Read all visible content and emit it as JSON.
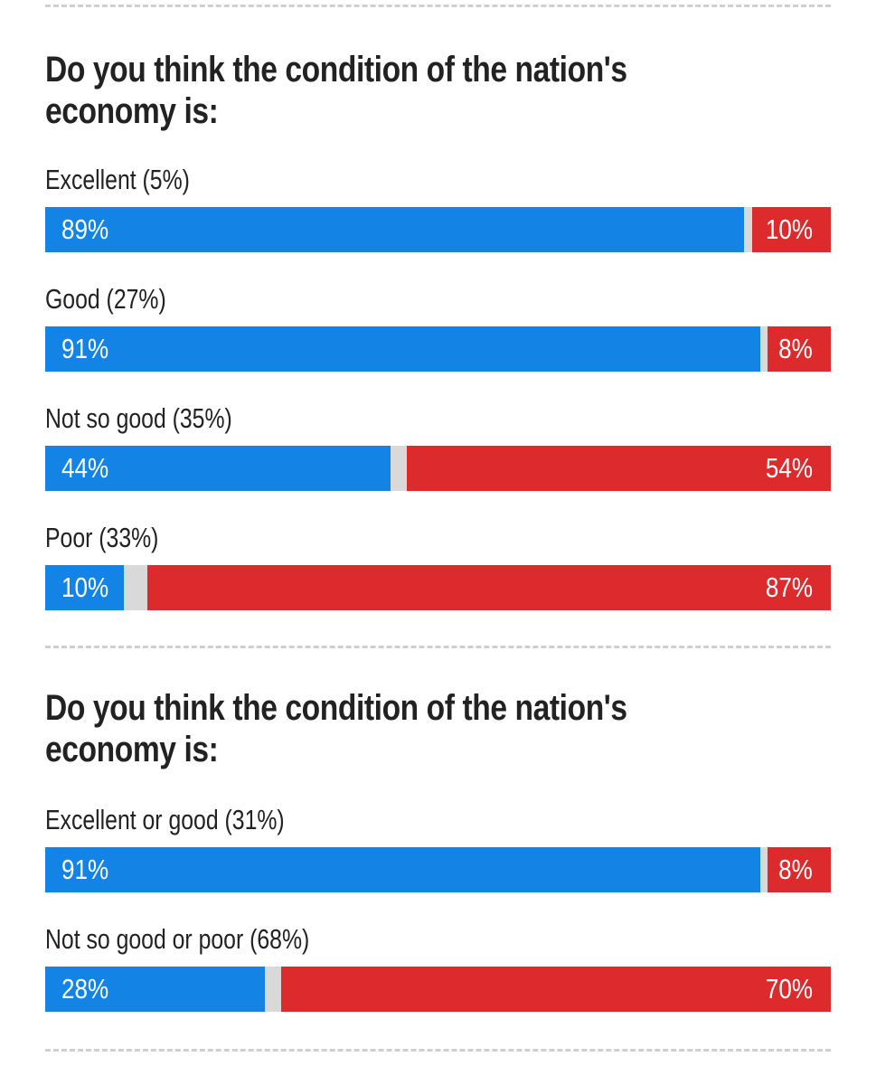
{
  "colors": {
    "dem": "#1384e6",
    "rep": "#dd2a2c",
    "other": "#d9d9d9"
  },
  "chart_data": [
    {
      "type": "bar",
      "title": "Do you think the condition of the nation's economy is:",
      "categories": [
        "Excellent (5%)",
        "Good (27%)",
        "Not so good (35%)",
        "Poor (33%)"
      ],
      "series": [
        {
          "values": [
            89,
            91,
            44,
            10
          ]
        },
        {
          "values": [
            10,
            8,
            54,
            87
          ]
        }
      ],
      "value_labels": {
        "left": [
          "89%",
          "91%",
          "44%",
          "10%"
        ],
        "right": [
          "10%",
          "8%",
          "54%",
          "87%"
        ]
      }
    },
    {
      "type": "bar",
      "title": "Do you think the condition of the nation's economy is:",
      "categories": [
        "Excellent or good (31%)",
        "Not so good or poor (68%)"
      ],
      "series": [
        {
          "values": [
            91,
            28
          ]
        },
        {
          "values": [
            8,
            70
          ]
        }
      ],
      "value_labels": {
        "left": [
          "91%",
          "28%"
        ],
        "right": [
          "8%",
          "70%"
        ]
      }
    }
  ]
}
